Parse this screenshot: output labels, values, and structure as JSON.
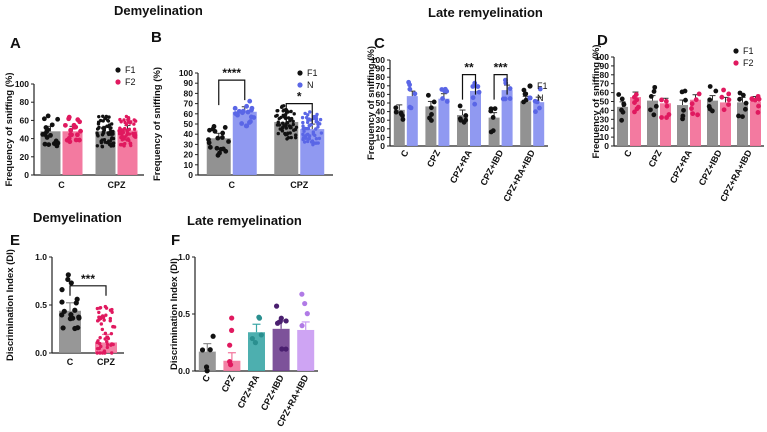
{
  "sections": {
    "demyelination_top": "Demyelination",
    "late_remyelination_top": "Late remyelination",
    "demyelination_bottom": "Demyelination",
    "late_remyelination_bottom": "Late remyelination"
  },
  "chart_data": [
    {
      "id": "A",
      "panel_label": "A",
      "type": "bar",
      "ylabel": "Frequency of sniffing (%)",
      "ylim": [
        0,
        100
      ],
      "yticks": [
        0,
        20,
        40,
        60,
        80,
        100
      ],
      "categories": [
        "C",
        "CPZ"
      ],
      "series": [
        {
          "name": "F1",
          "color": "#8c8c8c",
          "dot": "#111111",
          "values": [
            48,
            48
          ],
          "n": [
            18,
            60
          ]
        },
        {
          "name": "F2",
          "color": "#f2739b",
          "dot": "#e0195f",
          "values": [
            48,
            49
          ],
          "n": [
            18,
            60
          ]
        }
      ],
      "legend": [
        "F1",
        "F2"
      ],
      "significance": []
    },
    {
      "id": "B",
      "panel_label": "B",
      "type": "bar",
      "ylabel": "Frequency of sniffing (%)",
      "ylim": [
        0,
        100
      ],
      "yticks": [
        0,
        10,
        20,
        30,
        40,
        50,
        60,
        70,
        80,
        90,
        100
      ],
      "categories": [
        "C",
        "CPZ"
      ],
      "series": [
        {
          "name": "F1",
          "color": "#8c8c8c",
          "dot": "#111111",
          "values": [
            36,
            52
          ],
          "n": [
            18,
            60
          ]
        },
        {
          "name": "N",
          "color": "#8a93f0",
          "dot": "#5a66e6",
          "values": [
            62,
            45
          ],
          "n": [
            18,
            60
          ]
        }
      ],
      "legend": [
        "F1",
        "N"
      ],
      "significance": [
        {
          "category": "C",
          "label": "****",
          "y": 93
        },
        {
          "category": "CPZ",
          "label": "*",
          "y": 70
        }
      ]
    },
    {
      "id": "C",
      "panel_label": "C",
      "type": "bar",
      "ylabel": "Frequency of sniffing (%)",
      "ylim": [
        0,
        100
      ],
      "yticks": [
        0,
        10,
        20,
        30,
        40,
        50,
        60,
        70,
        80,
        90,
        100
      ],
      "categories": [
        "C",
        "CPZ",
        "CPZ+RA",
        "CPZ+IBD",
        "CPZ+RA+IBD"
      ],
      "series": [
        {
          "name": "F1",
          "color": "#8c8c8c",
          "dot": "#111111",
          "values": [
            42,
            46,
            36,
            33,
            52
          ],
          "n": [
            6,
            6,
            6,
            6,
            5
          ]
        },
        {
          "name": "N",
          "color": "#8a93f0",
          "dot": "#5a66e6",
          "values": [
            58,
            55,
            64,
            65,
            51
          ],
          "n": [
            6,
            6,
            6,
            6,
            5
          ]
        }
      ],
      "legend": [
        "F1",
        "N"
      ],
      "significance": [
        {
          "category": "CPZ+RA",
          "label": "**",
          "y": 83
        },
        {
          "category": "CPZ+IBD",
          "label": "***",
          "y": 83
        }
      ]
    },
    {
      "id": "D",
      "panel_label": "D",
      "type": "bar",
      "ylabel": "Frequency of sniffing (%)",
      "ylim": [
        0,
        100
      ],
      "yticks": [
        0,
        10,
        20,
        30,
        40,
        50,
        60,
        70,
        80,
        90,
        100
      ],
      "categories": [
        "C",
        "CPZ",
        "CPZ+RA",
        "CPZ+IBD",
        "CPZ+RA+IBD"
      ],
      "series": [
        {
          "name": "F1",
          "color": "#8c8c8c",
          "dot": "#111111",
          "values": [
            44,
            51,
            46,
            51,
            49
          ],
          "n": [
            7,
            6,
            6,
            6,
            7
          ]
        },
        {
          "name": "F2",
          "color": "#f2739b",
          "dot": "#e0195f",
          "values": [
            55,
            48,
            52,
            49,
            50
          ],
          "n": [
            7,
            6,
            6,
            6,
            7
          ]
        }
      ],
      "legend": [
        "F1",
        "F2"
      ],
      "significance": []
    },
    {
      "id": "E",
      "panel_label": "E",
      "type": "bar",
      "ylabel": "Discrimination Index (DI)",
      "ylim": [
        0,
        1.0
      ],
      "yticks": [
        0,
        0.5,
        1.0
      ],
      "ytick_labels": [
        "0.0",
        "0.5",
        "1.0"
      ],
      "categories": [
        "C",
        "CPZ"
      ],
      "series": [
        {
          "name": "DI",
          "colors": [
            "#8c8c8c",
            "#f2739b"
          ],
          "dots": [
            "#111111",
            "#e0195f"
          ],
          "values": [
            0.44,
            0.11
          ],
          "n": [
            18,
            50
          ]
        }
      ],
      "significance": [
        {
          "from": "C",
          "to": "CPZ",
          "label": "***",
          "y": 0.7
        }
      ]
    },
    {
      "id": "F",
      "panel_label": "F",
      "type": "bar",
      "ylabel": "Discrimination Index (DI)",
      "ylim": [
        0,
        1.0
      ],
      "yticks": [
        0,
        0.5,
        1.0
      ],
      "ytick_labels": [
        "0.0",
        "0.5",
        "1.0"
      ],
      "categories": [
        "C",
        "CPZ",
        "CPZ+RA",
        "CPZ+IBD",
        "CPZ+RA+IBD"
      ],
      "series": [
        {
          "name": "DI",
          "colors": [
            "#8c8c8c",
            "#f2739b",
            "#3aa6a6",
            "#6f3f8f",
            "#c99af2"
          ],
          "dots": [
            "#111111",
            "#e0195f",
            "#2a8f8f",
            "#4a1f6f",
            "#b07ae6"
          ],
          "values": [
            0.17,
            0.09,
            0.34,
            0.37,
            0.36
          ],
          "n": [
            5,
            5,
            5,
            7,
            4
          ]
        }
      ],
      "significance": []
    }
  ]
}
